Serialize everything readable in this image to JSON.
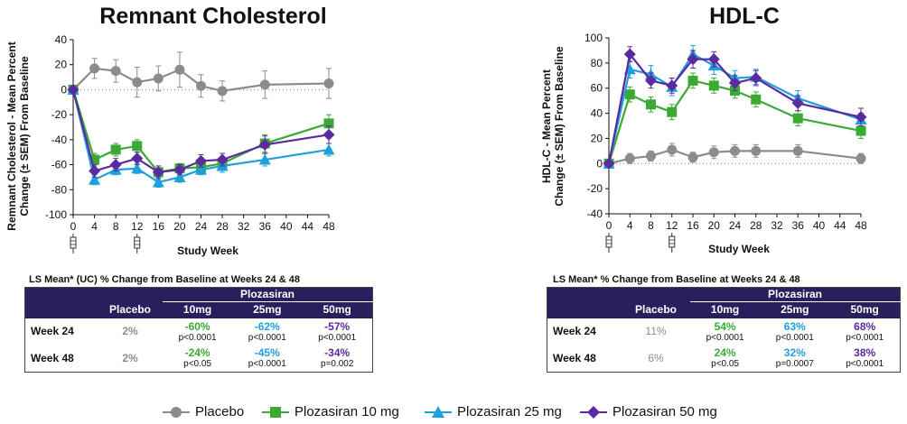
{
  "colors": {
    "placebo": "#8c8c8c",
    "plz10": "#3aaa35",
    "plz25": "#1ea0db",
    "plz50": "#5b2a9e",
    "table_header": "#2a1e5c"
  },
  "chart_data": [
    {
      "type": "line",
      "title": "Remnant Cholesterol",
      "xlabel": "Study Week",
      "ylabel": "Remnant Cholesterol - Mean Percent Change (± SEM) From Baseline",
      "x_ticks": [
        0,
        4,
        8,
        12,
        16,
        20,
        24,
        28,
        32,
        36,
        40,
        44,
        48
      ],
      "y_ticks": [
        40,
        20,
        0,
        -20,
        -40,
        -60,
        -80,
        -100
      ],
      "ylim": [
        -100,
        40
      ],
      "dose_weeks": [
        0,
        12
      ],
      "series": [
        {
          "name": "Placebo",
          "marker": "circle",
          "color_key": "placebo",
          "x": [
            0,
            4,
            8,
            12,
            16,
            20,
            24,
            28,
            36,
            48
          ],
          "y": [
            0,
            17,
            15,
            6,
            9,
            16,
            3,
            -1,
            4,
            5
          ],
          "err": [
            0,
            8,
            9,
            12,
            10,
            14,
            9,
            8,
            11,
            12
          ]
        },
        {
          "name": "Plozasiran 10 mg",
          "marker": "square",
          "color_key": "plz10",
          "x": [
            0,
            4,
            8,
            12,
            16,
            20,
            24,
            28,
            36,
            48
          ],
          "y": [
            0,
            -56,
            -48,
            -45,
            -66,
            -63,
            -62,
            -59,
            -43,
            -27
          ],
          "err": [
            0,
            5,
            5,
            5,
            5,
            4,
            5,
            5,
            7,
            7
          ]
        },
        {
          "name": "Plozasiran 25 mg",
          "marker": "triangle",
          "color_key": "plz25",
          "x": [
            0,
            4,
            8,
            12,
            16,
            20,
            24,
            28,
            36,
            48
          ],
          "y": [
            0,
            -72,
            -64,
            -63,
            -74,
            -70,
            -64,
            -61,
            -56,
            -48
          ],
          "err": [
            0,
            4,
            4,
            4,
            4,
            4,
            4,
            5,
            5,
            5
          ]
        },
        {
          "name": "Plozasiran 50 mg",
          "marker": "diamond",
          "color_key": "plz50",
          "x": [
            0,
            4,
            8,
            12,
            16,
            20,
            24,
            28,
            36,
            48
          ],
          "y": [
            0,
            -65,
            -60,
            -55,
            -66,
            -64,
            -57,
            -56,
            -44,
            -36
          ],
          "err": [
            0,
            5,
            5,
            5,
            5,
            4,
            5,
            5,
            7,
            7
          ]
        }
      ]
    },
    {
      "type": "line",
      "title": "HDL-C",
      "xlabel": "Study Week",
      "ylabel": "HDL-C - Mean Percent Change (± SEM) From Baseline",
      "x_ticks": [
        0,
        4,
        8,
        12,
        16,
        20,
        24,
        28,
        32,
        36,
        40,
        44,
        48
      ],
      "y_ticks": [
        100,
        80,
        60,
        40,
        20,
        0,
        -20,
        -40
      ],
      "ylim": [
        -40,
        100
      ],
      "dose_weeks": [
        0,
        12
      ],
      "series": [
        {
          "name": "Placebo",
          "marker": "circle",
          "color_key": "placebo",
          "x": [
            0,
            4,
            8,
            12,
            16,
            20,
            24,
            28,
            36,
            48
          ],
          "y": [
            0,
            4,
            6,
            11,
            5,
            9,
            10,
            10,
            10,
            4
          ],
          "err": [
            0,
            4,
            4,
            5,
            4,
            5,
            5,
            5,
            5,
            4
          ]
        },
        {
          "name": "Plozasiran 10 mg",
          "marker": "square",
          "color_key": "plz10",
          "x": [
            0,
            4,
            8,
            12,
            16,
            20,
            24,
            28,
            36,
            48
          ],
          "y": [
            0,
            55,
            47,
            41,
            66,
            62,
            58,
            51,
            36,
            26
          ],
          "err": [
            0,
            6,
            6,
            6,
            6,
            6,
            6,
            6,
            6,
            6
          ]
        },
        {
          "name": "Plozasiran 25 mg",
          "marker": "triangle",
          "color_key": "plz25",
          "x": [
            0,
            4,
            8,
            12,
            16,
            20,
            24,
            28,
            36,
            48
          ],
          "y": [
            0,
            75,
            71,
            61,
            87,
            78,
            68,
            69,
            52,
            35
          ],
          "err": [
            0,
            7,
            7,
            7,
            7,
            7,
            6,
            6,
            6,
            5
          ]
        },
        {
          "name": "Plozasiran 50 mg",
          "marker": "diamond",
          "color_key": "plz50",
          "x": [
            0,
            4,
            8,
            12,
            16,
            20,
            24,
            28,
            36,
            48
          ],
          "y": [
            0,
            87,
            66,
            62,
            83,
            83,
            64,
            68,
            48,
            37
          ],
          "err": [
            0,
            6,
            6,
            6,
            7,
            6,
            6,
            6,
            6,
            7
          ]
        }
      ]
    }
  ],
  "tables": {
    "left": {
      "caption": "LS Mean* (UC) % Change from Baseline at Weeks 24 & 48",
      "group_header": "Plozasiran",
      "col_placebo": "Placebo",
      "cols": [
        "10mg",
        "25mg",
        "50mg"
      ],
      "rows": [
        {
          "label": "Week 24",
          "placebo": "2%",
          "cells": [
            {
              "pct": "-60%",
              "p": "p<0.0001"
            },
            {
              "pct": "-62%",
              "p": "p<0.0001"
            },
            {
              "pct": "-57%",
              "p": "p<0.0001"
            }
          ]
        },
        {
          "label": "Week 48",
          "placebo": "2%",
          "cells": [
            {
              "pct": "-24%",
              "p": "p<0.05"
            },
            {
              "pct": "-45%",
              "p": "p<0.0001"
            },
            {
              "pct": "-34%",
              "p": "p=0.002"
            }
          ]
        }
      ]
    },
    "right": {
      "caption": "LS Mean* % Change from Baseline at Weeks 24 & 48",
      "group_header": "Plozasiran",
      "col_placebo": "Placebo",
      "cols": [
        "10mg",
        "25mg",
        "50mg"
      ],
      "rows": [
        {
          "label": "Week 24",
          "placebo": "11%",
          "cells": [
            {
              "pct": "54%",
              "p": "p<0.0001"
            },
            {
              "pct": "63%",
              "p": "p<0.0001"
            },
            {
              "pct": "68%",
              "p": "p<0.0001"
            }
          ]
        },
        {
          "label": "Week 48",
          "placebo": "6%",
          "cells": [
            {
              "pct": "24%",
              "p": "p<0.05"
            },
            {
              "pct": "32%",
              "p": "p=0.0007"
            },
            {
              "pct": "38%",
              "p": "p<0.0001"
            }
          ]
        }
      ]
    }
  },
  "legend": [
    {
      "label": "Placebo",
      "marker": "circle",
      "color_key": "placebo"
    },
    {
      "label": "Plozasiran 10 mg",
      "marker": "square",
      "color_key": "plz10"
    },
    {
      "label": "Plozasiran 25 mg",
      "marker": "triangle",
      "color_key": "plz25"
    },
    {
      "label": "Plozasiran 50 mg",
      "marker": "diamond",
      "color_key": "plz50"
    }
  ]
}
